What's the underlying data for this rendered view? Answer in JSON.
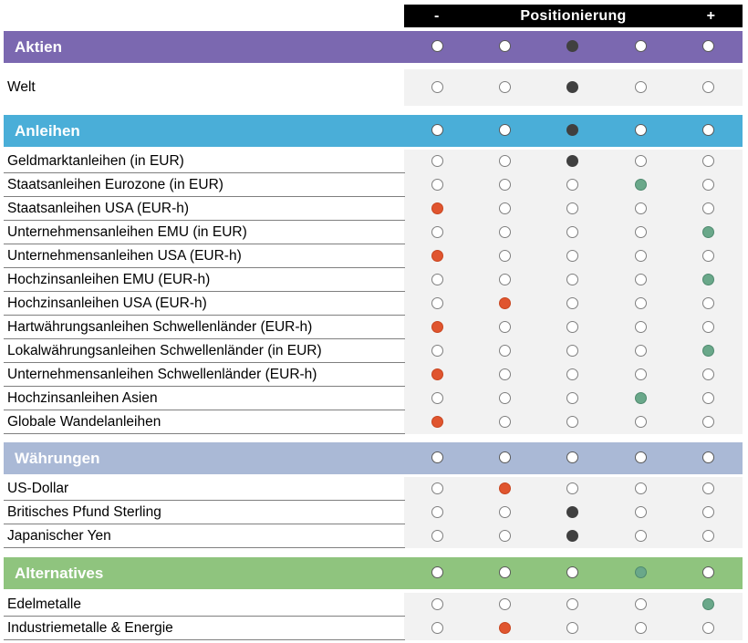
{
  "header": {
    "minus": "-",
    "title": "Positionierung",
    "plus": "+"
  },
  "colors": {
    "aktien": "#7b68b0",
    "anleihen": "#4aaed8",
    "waehrungen": "#aab9d6",
    "alternatives": "#8fc47e",
    "header_bg": "#000000",
    "grid_bg": "#f2f2f2",
    "negative_dot": "#e0552f",
    "positive_dot": "#6aa88a",
    "neutral_dot": "#404040"
  },
  "legend": {
    "e": "empty-circle",
    "f": "white-circle",
    "d": "dark-gray-filled-circle",
    "r": "orange-red-filled-circle",
    "g": "green-filled-circle"
  },
  "sections": [
    {
      "label": "Aktien",
      "color": "#7b68b0",
      "dots": [
        "f",
        "f",
        "d",
        "f",
        "f"
      ],
      "rows": [
        {
          "label": "Welt",
          "dots": [
            "e",
            "e",
            "d",
            "e",
            "e"
          ]
        }
      ]
    },
    {
      "label": "Anleihen",
      "color": "#4aaed8",
      "dots": [
        "f",
        "f",
        "d",
        "f",
        "f"
      ],
      "rows": [
        {
          "label": "Geldmarktanleihen (in EUR)",
          "dots": [
            "e",
            "e",
            "d",
            "e",
            "e"
          ]
        },
        {
          "label": "Staatsanleihen Eurozone (in EUR)",
          "dots": [
            "e",
            "e",
            "e",
            "g",
            "e"
          ]
        },
        {
          "label": "Staatsanleihen USA (EUR-h)",
          "dots": [
            "r",
            "e",
            "e",
            "e",
            "e"
          ]
        },
        {
          "label": "Unternehmensanleihen EMU (in EUR)",
          "dots": [
            "e",
            "e",
            "e",
            "e",
            "g"
          ]
        },
        {
          "label": "Unternehmensanleihen USA (EUR-h)",
          "dots": [
            "r",
            "e",
            "e",
            "e",
            "e"
          ]
        },
        {
          "label": "Hochzinsanleihen EMU (EUR-h)",
          "dots": [
            "e",
            "e",
            "e",
            "e",
            "g"
          ]
        },
        {
          "label": "Hochzinsanleihen USA (EUR-h)",
          "dots": [
            "e",
            "r",
            "e",
            "e",
            "e"
          ]
        },
        {
          "label": "Hartwährungsanleihen Schwellenländer (EUR-h)",
          "dots": [
            "r",
            "e",
            "e",
            "e",
            "e"
          ]
        },
        {
          "label": "Lokalwährungsanleihen Schwellenländer (in EUR)",
          "dots": [
            "e",
            "e",
            "e",
            "e",
            "g"
          ]
        },
        {
          "label": "Unternehmensanleihen Schwellenländer (EUR-h)",
          "dots": [
            "r",
            "e",
            "e",
            "e",
            "e"
          ]
        },
        {
          "label": "Hochzinsanleihen Asien",
          "dots": [
            "e",
            "e",
            "e",
            "g",
            "e"
          ]
        },
        {
          "label": "Globale Wandelanleihen",
          "dots": [
            "r",
            "e",
            "e",
            "e",
            "e"
          ]
        }
      ]
    },
    {
      "label": "Währungen",
      "color": "#aab9d6",
      "dots": [
        "f",
        "f",
        "f",
        "f",
        "f"
      ],
      "rows": [
        {
          "label": "US-Dollar",
          "dots": [
            "e",
            "r",
            "e",
            "e",
            "e"
          ]
        },
        {
          "label": "Britisches Pfund Sterling",
          "dots": [
            "e",
            "e",
            "d",
            "e",
            "e"
          ]
        },
        {
          "label": "Japanischer Yen",
          "dots": [
            "e",
            "e",
            "d",
            "e",
            "e"
          ]
        }
      ]
    },
    {
      "label": "Alternatives",
      "color": "#8fc47e",
      "dots": [
        "f",
        "f",
        "f",
        "g",
        "f"
      ],
      "rows": [
        {
          "label": "Edelmetalle",
          "dots": [
            "e",
            "e",
            "e",
            "e",
            "g"
          ]
        },
        {
          "label": "Industriemetalle & Energie",
          "dots": [
            "e",
            "r",
            "e",
            "e",
            "e"
          ]
        }
      ]
    }
  ]
}
